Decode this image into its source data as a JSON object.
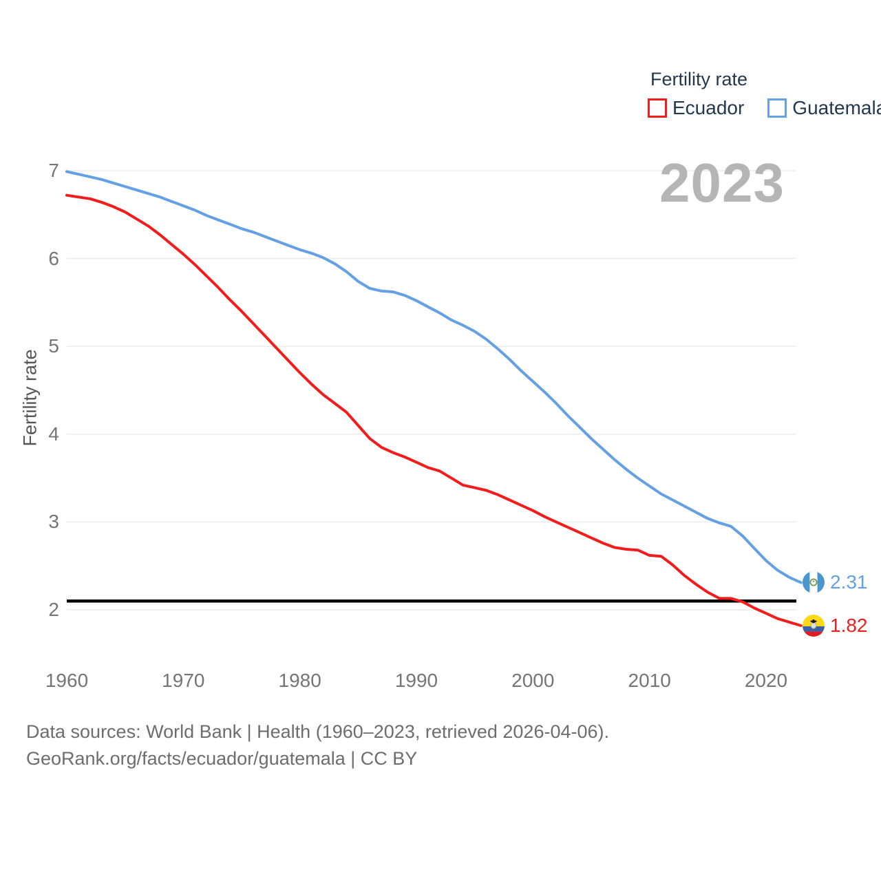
{
  "legend": {
    "title": "Fertility rate",
    "items": [
      {
        "label": "Ecuador",
        "color": "#f21c1c"
      },
      {
        "label": "Guatemala",
        "color": "#64a0e4"
      }
    ]
  },
  "watermark": "2023",
  "chart_data": {
    "type": "line",
    "title": "Fertility rate",
    "ylabel": "Fertility rate",
    "grid": "horizontal",
    "legend_position": "top-right",
    "ylim": [
      1.6,
      7.05
    ],
    "xticks": [
      "1960",
      "1970",
      "1980",
      "1990",
      "2000",
      "2010",
      "2020"
    ],
    "yticks": [
      "7",
      "6",
      "5",
      "4",
      "3",
      "2"
    ],
    "reference_line": {
      "value": 2.1,
      "color": "#000000"
    },
    "x": [
      1960,
      1961,
      1962,
      1963,
      1964,
      1965,
      1966,
      1967,
      1968,
      1969,
      1970,
      1971,
      1972,
      1973,
      1974,
      1975,
      1976,
      1977,
      1978,
      1979,
      1980,
      1981,
      1982,
      1983,
      1984,
      1985,
      1986,
      1987,
      1988,
      1989,
      1990,
      1991,
      1992,
      1993,
      1994,
      1995,
      1996,
      1997,
      1998,
      1999,
      2000,
      2001,
      2002,
      2003,
      2004,
      2005,
      2006,
      2007,
      2008,
      2009,
      2010,
      2011,
      2012,
      2013,
      2014,
      2015,
      2016,
      2017,
      2018,
      2019,
      2020,
      2021,
      2022,
      2023
    ],
    "series": [
      {
        "name": "Ecuador",
        "color": "#f21c1c",
        "end_label": "1.82",
        "end_value": 1.82,
        "flag": "ecuador",
        "values": [
          6.72,
          6.7,
          6.68,
          6.64,
          6.59,
          6.53,
          6.45,
          6.37,
          6.27,
          6.16,
          6.05,
          5.93,
          5.8,
          5.67,
          5.53,
          5.4,
          5.26,
          5.12,
          4.98,
          4.84,
          4.7,
          4.57,
          4.45,
          4.35,
          4.25,
          4.1,
          3.95,
          3.85,
          3.79,
          3.74,
          3.68,
          3.62,
          3.58,
          3.5,
          3.42,
          3.39,
          3.36,
          3.31,
          3.25,
          3.19,
          3.13,
          3.06,
          3.0,
          2.94,
          2.88,
          2.82,
          2.76,
          2.71,
          2.69,
          2.68,
          2.62,
          2.61,
          2.51,
          2.39,
          2.29,
          2.2,
          2.13,
          2.13,
          2.09,
          2.02,
          1.96,
          1.9,
          1.86,
          1.82
        ]
      },
      {
        "name": "Guatemala",
        "color": "#64a0e4",
        "end_label": "2.31",
        "end_value": 2.31,
        "flag": "guatemala",
        "values": [
          6.99,
          6.96,
          6.93,
          6.9,
          6.86,
          6.82,
          6.78,
          6.74,
          6.7,
          6.65,
          6.6,
          6.55,
          6.49,
          6.44,
          6.39,
          6.34,
          6.3,
          6.25,
          6.2,
          6.15,
          6.1,
          6.06,
          6.01,
          5.94,
          5.85,
          5.74,
          5.66,
          5.63,
          5.62,
          5.58,
          5.52,
          5.45,
          5.38,
          5.3,
          5.24,
          5.17,
          5.08,
          4.97,
          4.85,
          4.72,
          4.6,
          4.48,
          4.35,
          4.21,
          4.08,
          3.95,
          3.83,
          3.71,
          3.6,
          3.5,
          3.41,
          3.32,
          3.25,
          3.18,
          3.11,
          3.04,
          2.99,
          2.95,
          2.84,
          2.7,
          2.56,
          2.45,
          2.37,
          2.31
        ]
      }
    ]
  },
  "footer": {
    "line1": "Data sources: World Bank | Health (1960–2023, retrieved 2026-04-06).",
    "line2": "GeoRank.org/facts/ecuador/guatemala | CC BY"
  }
}
